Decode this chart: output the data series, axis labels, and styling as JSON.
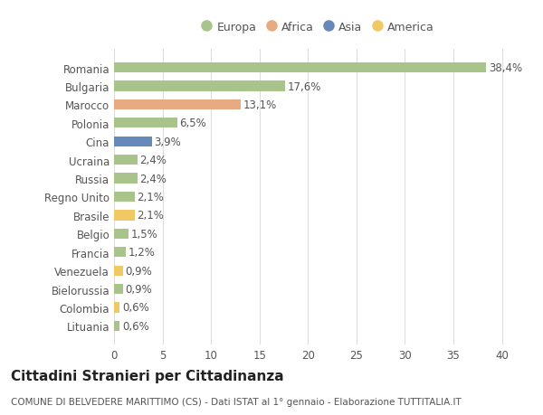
{
  "categories": [
    "Romania",
    "Bulgaria",
    "Marocco",
    "Polonia",
    "Cina",
    "Ucraina",
    "Russia",
    "Regno Unito",
    "Brasile",
    "Belgio",
    "Francia",
    "Venezuela",
    "Bielorussia",
    "Colombia",
    "Lituania"
  ],
  "values": [
    38.4,
    17.6,
    13.1,
    6.5,
    3.9,
    2.4,
    2.4,
    2.1,
    2.1,
    1.5,
    1.2,
    0.9,
    0.9,
    0.6,
    0.6
  ],
  "labels": [
    "38,4%",
    "17,6%",
    "13,1%",
    "6,5%",
    "3,9%",
    "2,4%",
    "2,4%",
    "2,1%",
    "2,1%",
    "1,5%",
    "1,2%",
    "0,9%",
    "0,9%",
    "0,6%",
    "0,6%"
  ],
  "continents": [
    "Europa",
    "Europa",
    "Africa",
    "Europa",
    "Asia",
    "Europa",
    "Europa",
    "Europa",
    "America",
    "Europa",
    "Europa",
    "America",
    "Europa",
    "America",
    "Europa"
  ],
  "colors": {
    "Europa": "#a8c48a",
    "Africa": "#e8aa80",
    "Asia": "#6688bb",
    "America": "#f0c864"
  },
  "legend_order": [
    "Europa",
    "Africa",
    "Asia",
    "America"
  ],
  "legend_colors": [
    "#a8c48a",
    "#e8aa80",
    "#6688bb",
    "#f0c864"
  ],
  "title": "Cittadini Stranieri per Cittadinanza",
  "subtitle": "COMUNE DI BELVEDERE MARITTIMO (CS) - Dati ISTAT al 1° gennaio - Elaborazione TUTTITALIA.IT",
  "xlim": [
    0,
    42
  ],
  "background_color": "#ffffff",
  "plot_bg_color": "#ffffff",
  "grid_color": "#dddddd",
  "bar_height": 0.55,
  "tick_label_fontsize": 8.5,
  "label_fontsize": 8.5,
  "title_fontsize": 11,
  "subtitle_fontsize": 7.5
}
